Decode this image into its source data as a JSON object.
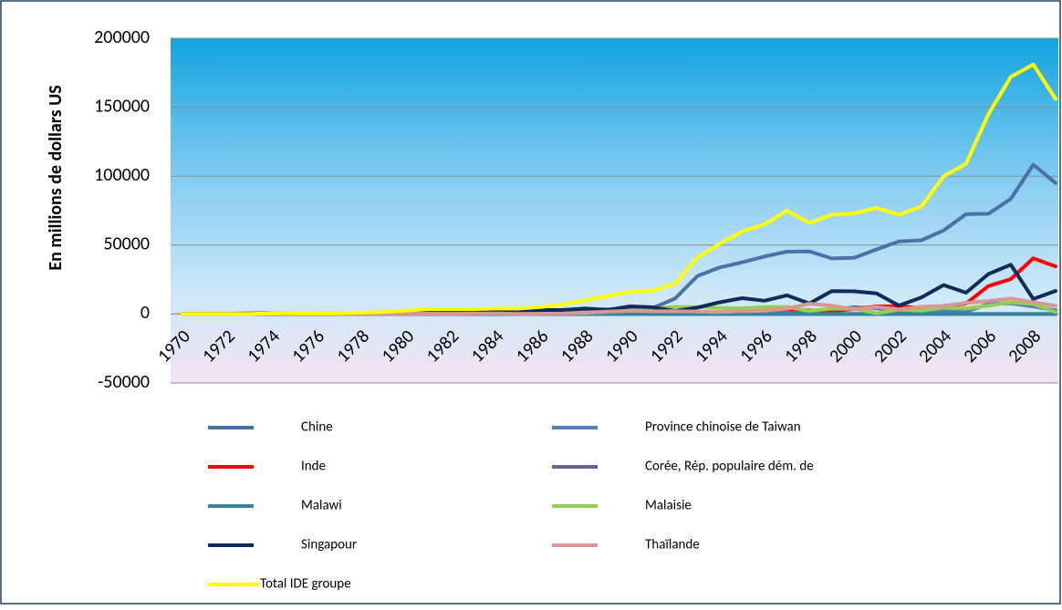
{
  "chart_data": {
    "type": "line",
    "y_label": "En millions de dollars US",
    "categories": [
      "1970",
      null,
      "1972",
      null,
      "1974",
      null,
      "1976",
      null,
      "1978",
      null,
      "1980",
      null,
      "1982",
      null,
      "1984",
      null,
      "1986",
      null,
      "1988",
      null,
      "1990",
      null,
      "1992",
      null,
      "1994",
      null,
      "1996",
      null,
      "1998",
      null,
      "2000",
      null,
      "2002",
      null,
      "2004",
      null,
      "2006",
      null,
      "2008",
      null
    ],
    "ylim": [
      -50000,
      200000
    ],
    "yticks": [
      -50000,
      0,
      50000,
      100000,
      150000,
      200000
    ],
    "grid": true,
    "series": [
      {
        "name": "Chine",
        "color": "#4a72a8",
        "values": [
          0,
          0,
          0,
          0,
          0,
          0,
          0,
          0,
          0,
          0,
          60,
          260,
          430,
          640,
          1260,
          1660,
          1880,
          2310,
          3190,
          3390,
          3490,
          4370,
          11160,
          27520,
          33790,
          37520,
          41730,
          45260,
          45460,
          40320,
          40720,
          46880,
          52740,
          53510,
          60630,
          72410,
          72720,
          83520,
          108310,
          95000
        ]
      },
      {
        "name": "Province chinoise de Taiwan",
        "color": "#4f81bd",
        "values": [
          60,
          60,
          50,
          80,
          90,
          30,
          50,
          60,
          110,
          120,
          170,
          150,
          100,
          150,
          200,
          340,
          330,
          720,
          960,
          1600,
          1330,
          1270,
          880,
          920,
          1380,
          1560,
          1860,
          2250,
          220,
          2930,
          4930,
          4110,
          1440,
          450,
          1900,
          1630,
          7420,
          7770,
          5430,
          2800
        ]
      },
      {
        "name": "Inde",
        "color": "#ff0000",
        "values": [
          50,
          50,
          40,
          40,
          60,
          70,
          20,
          20,
          30,
          50,
          80,
          90,
          70,
          10,
          20,
          110,
          120,
          210,
          90,
          250,
          240,
          80,
          250,
          550,
          970,
          2150,
          2530,
          3620,
          2630,
          2170,
          3590,
          5470,
          5630,
          4320,
          5770,
          7610,
          20330,
          25350,
          40420,
          34610
        ]
      },
      {
        "name": "Corée, Rép. populaire dém. de",
        "color": "#6b5b8e",
        "values": [
          0,
          0,
          0,
          0,
          0,
          0,
          0,
          0,
          0,
          0,
          0,
          0,
          0,
          0,
          0,
          0,
          0,
          0,
          0,
          0,
          0,
          0,
          0,
          0,
          0,
          0,
          0,
          0,
          0,
          0,
          0,
          0,
          0,
          0,
          0,
          0,
          0,
          0,
          0,
          0
        ]
      },
      {
        "name": "Malawi",
        "color": "#31859c",
        "values": [
          0,
          0,
          0,
          0,
          0,
          0,
          0,
          0,
          0,
          0,
          0,
          0,
          0,
          0,
          0,
          0,
          0,
          0,
          0,
          0,
          0,
          0,
          0,
          0,
          0,
          0,
          0,
          0,
          0,
          0,
          0,
          0,
          0,
          0,
          0,
          0,
          0,
          0,
          0,
          0
        ]
      },
      {
        "name": "Malaisie",
        "color": "#92d050",
        "values": [
          90,
          100,
          110,
          170,
          570,
          350,
          380,
          410,
          500,
          570,
          930,
          1260,
          1400,
          1260,
          800,
          700,
          490,
          420,
          720,
          1670,
          2330,
          4000,
          5180,
          5010,
          4340,
          4180,
          5080,
          5140,
          2160,
          3900,
          3790,
          550,
          3200,
          2470,
          4620,
          3970,
          6060,
          8540,
          7250,
          1400
        ]
      },
      {
        "name": "Singapour",
        "color": "#0f2b5b",
        "values": [
          90,
          120,
          190,
          390,
          600,
          290,
          330,
          340,
          710,
          840,
          1240,
          1660,
          1300,
          1390,
          1300,
          1050,
          2840,
          3000,
          4000,
          3000,
          5580,
          4890,
          2200,
          4690,
          8550,
          11540,
          9680,
          13530,
          7590,
          16580,
          16480,
          15040,
          6160,
          11940,
          21030,
          15460,
          29060,
          35780,
          10910,
          16810
        ]
      },
      {
        "name": "Thaïlande",
        "color": "#d99694",
        "values": [
          40,
          40,
          70,
          80,
          190,
          90,
          80,
          100,
          50,
          60,
          190,
          290,
          190,
          350,
          400,
          160,
          260,
          350,
          1100,
          1780,
          2440,
          2010,
          2110,
          1800,
          1370,
          2070,
          2340,
          3880,
          7490,
          6090,
          3410,
          5060,
          3340,
          5230,
          5860,
          8060,
          9460,
          11330,
          8540,
          5960
        ]
      },
      {
        "name": "Total IDE groupe",
        "color": "#ffff00",
        "values": [
          0,
          0,
          0,
          0,
          500,
          500,
          500,
          500,
          1000,
          1500,
          2500,
          3500,
          3500,
          3500,
          4000,
          4000,
          5000,
          7000,
          10000,
          13000,
          16000,
          17000,
          22000,
          41000,
          51000,
          60000,
          65000,
          75000,
          66000,
          72000,
          73000,
          77000,
          72000,
          78000,
          100000,
          109000,
          145000,
          172000,
          181000,
          156000
        ]
      }
    ]
  }
}
